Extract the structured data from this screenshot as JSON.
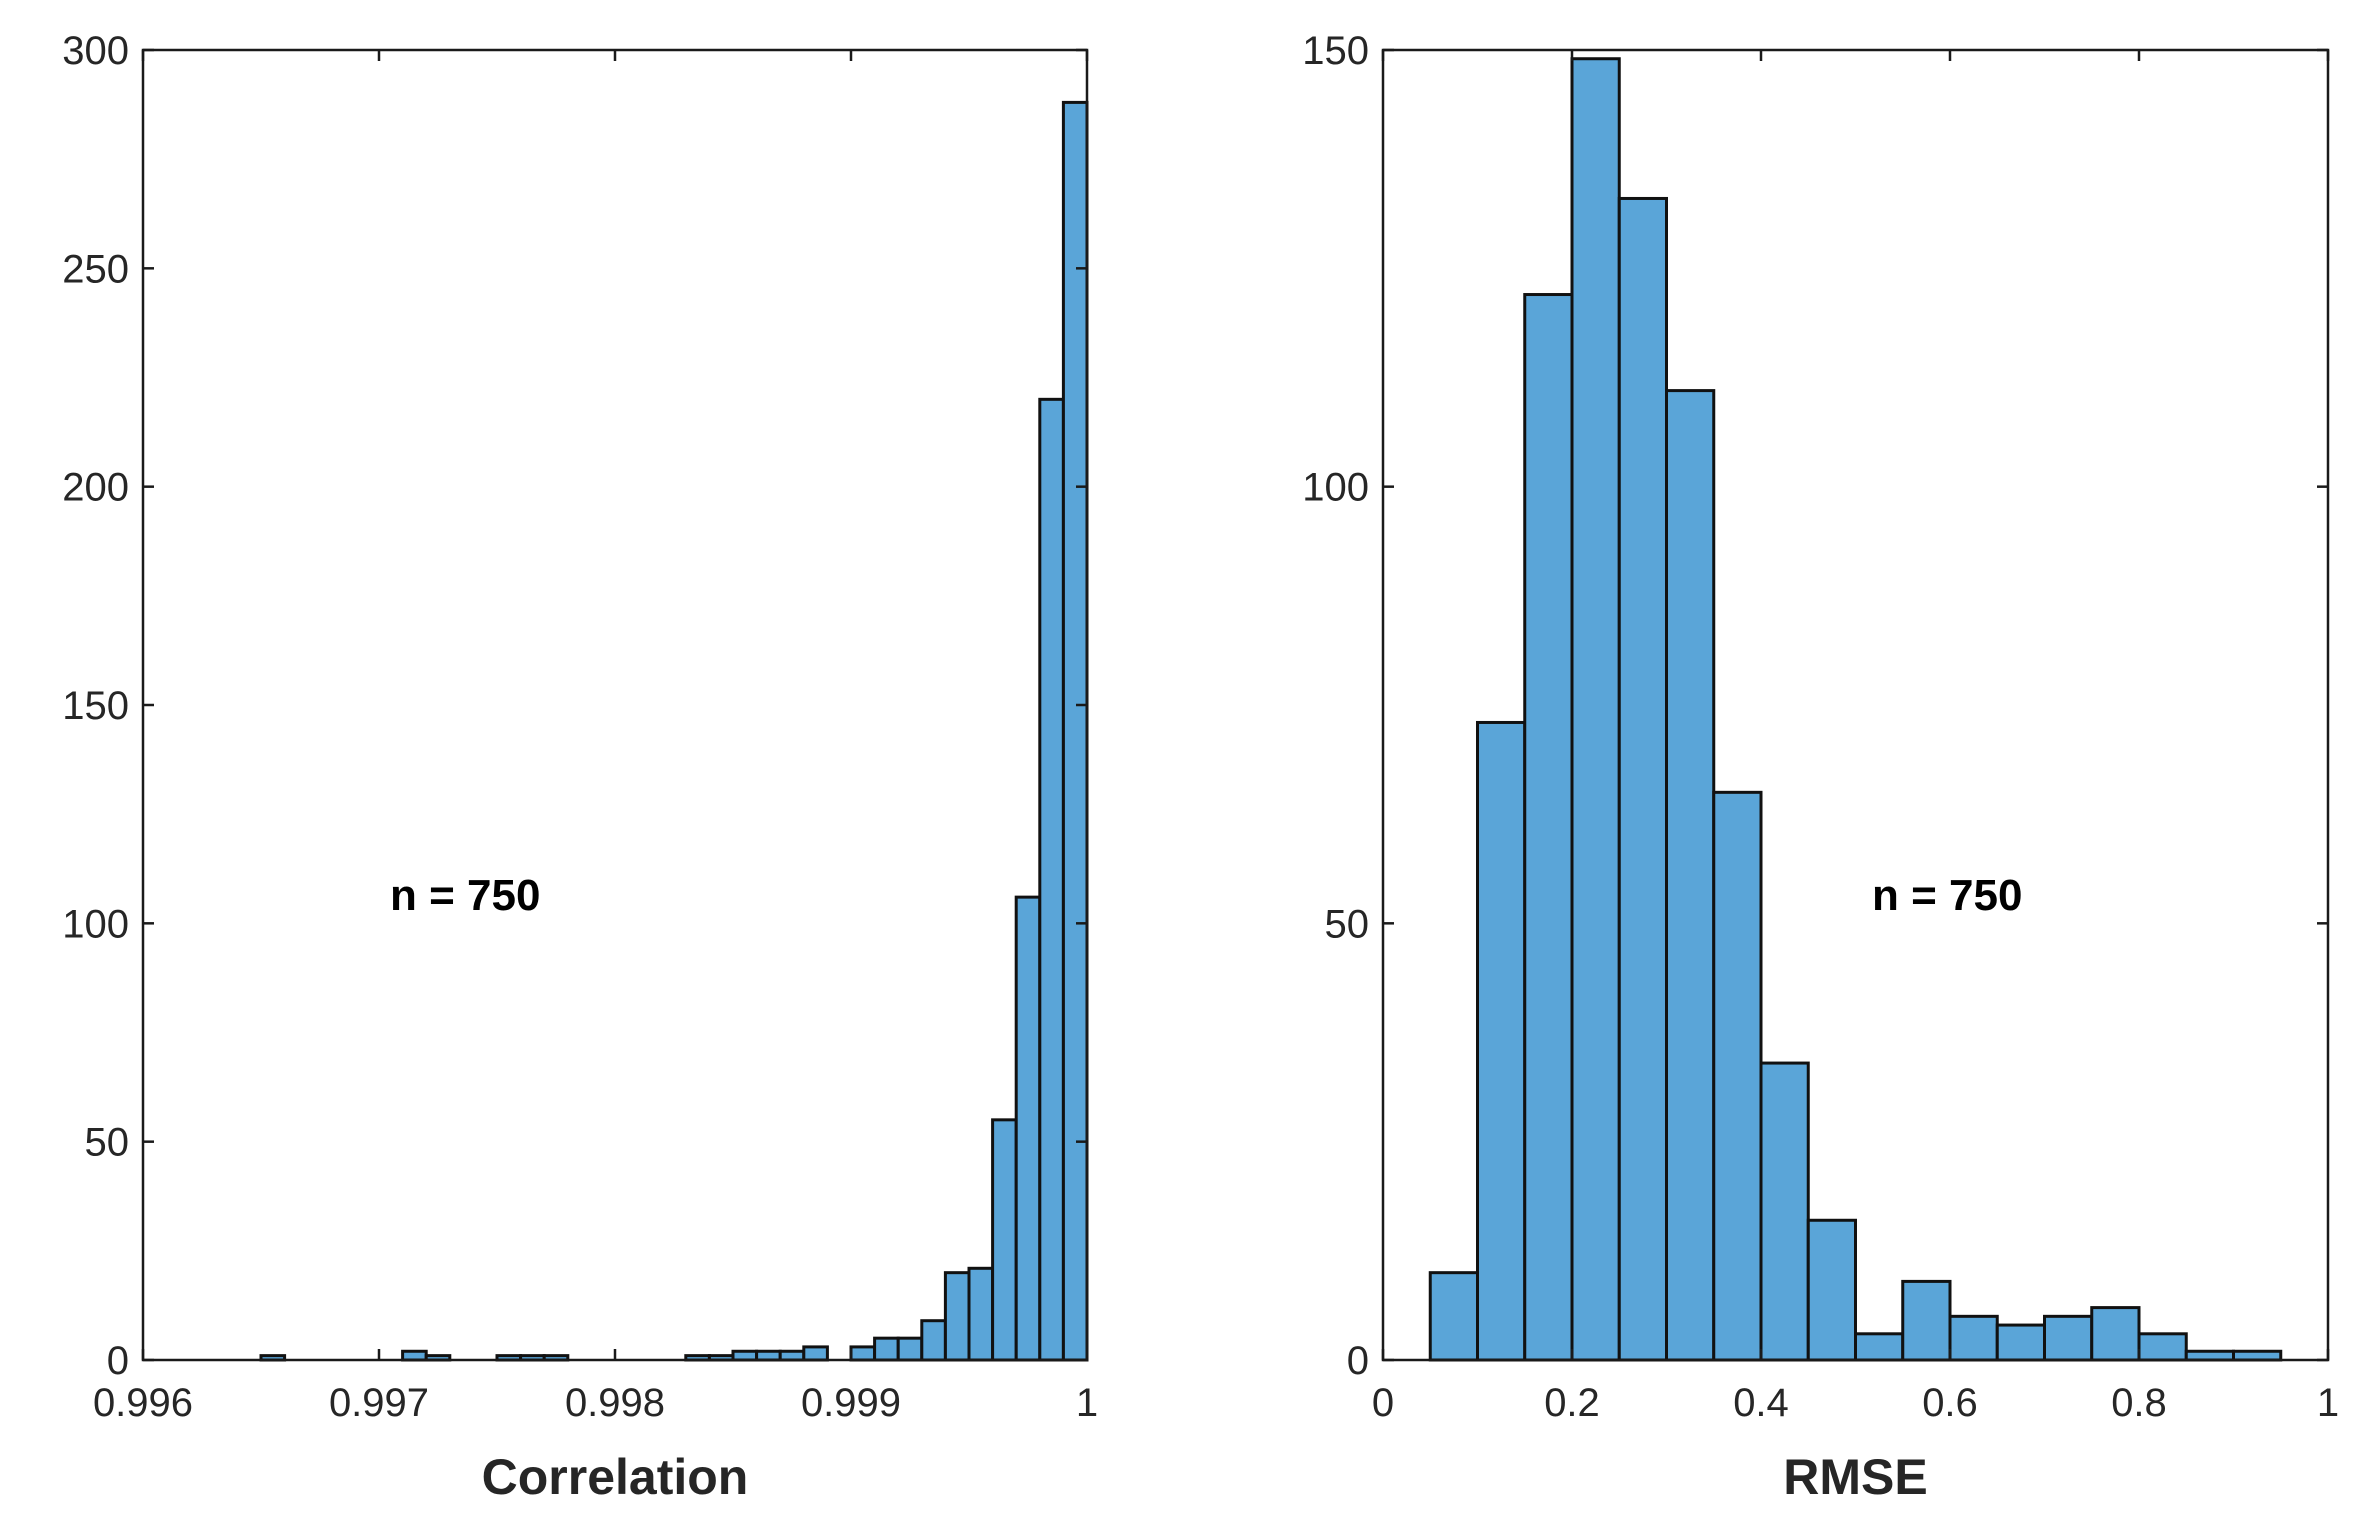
{
  "chart_data": [
    {
      "type": "histogram",
      "title": "",
      "xlabel": "Correlation",
      "ylabel": "",
      "xlim": [
        0.996,
        1
      ],
      "ylim": [
        0,
        300
      ],
      "xticks": [
        0.996,
        0.997,
        0.998,
        0.999,
        1
      ],
      "xtick_labels": [
        "0.996",
        "0.997",
        "0.998",
        "0.999",
        "1"
      ],
      "yticks": [
        0,
        50,
        100,
        150,
        200,
        250,
        300
      ],
      "ytick_labels": [
        "0",
        "50",
        "100",
        "150",
        "200",
        "250",
        "300"
      ],
      "bin_width": 0.0001,
      "bin_start": 0.9964,
      "counts": [
        0,
        1,
        0,
        0,
        0,
        0,
        0,
        2,
        1,
        0,
        0,
        1,
        1,
        1,
        0,
        0,
        0,
        0,
        0,
        1,
        1,
        2,
        2,
        2,
        3,
        0,
        3,
        5,
        5,
        9,
        20,
        21,
        55,
        106,
        220,
        288
      ],
      "annotation": "n = 750",
      "color": "#5aa5d8",
      "edge_color": "#111111"
    },
    {
      "type": "histogram",
      "title": "",
      "xlabel": "RMSE",
      "ylabel": "",
      "xlim": [
        0,
        1
      ],
      "ylim": [
        0,
        150
      ],
      "xticks": [
        0,
        0.2,
        0.4,
        0.6,
        0.8,
        1
      ],
      "xtick_labels": [
        "0",
        "0.2",
        "0.4",
        "0.6",
        "0.8",
        "1"
      ],
      "yticks": [
        0,
        50,
        100,
        150
      ],
      "ytick_labels": [
        "0",
        "50",
        "100",
        "150"
      ],
      "bin_width": 0.05,
      "bin_start": 0.05,
      "counts": [
        10,
        73,
        122,
        149,
        133,
        111,
        65,
        34,
        16,
        3,
        9,
        5,
        4,
        5,
        6,
        3,
        1,
        1
      ],
      "annotation": "n = 750",
      "color": "#5aa5d8",
      "edge_color": "#111111"
    }
  ]
}
